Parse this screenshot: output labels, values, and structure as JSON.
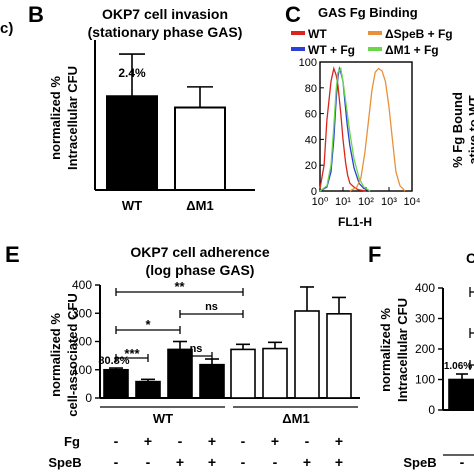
{
  "panels": {
    "partial_left": "c)",
    "B": "B",
    "C": "C",
    "E": "E",
    "F": "F"
  },
  "chart_data": [
    {
      "id": "B",
      "type": "bar",
      "title": [
        "OKP7 cell invasion",
        "(stationary phase GAS)"
      ],
      "ylabel": [
        "normalized %",
        "Intracellular CFU"
      ],
      "categories": [
        "WT",
        "ΔM1"
      ],
      "values": [
        100,
        88
      ],
      "errors": [
        45,
        22
      ],
      "fills": [
        "#000000",
        "#ffffff"
      ],
      "annotation": "2.4%",
      "ylim": [
        0,
        160
      ]
    },
    {
      "id": "C",
      "type": "line",
      "title": "GAS Fg Binding",
      "xlabel": "FL1-H",
      "xscale": "log",
      "xlim": [
        1,
        10000
      ],
      "xticks": [
        "10⁰",
        "10¹",
        "10²",
        "10³",
        "10⁴"
      ],
      "ylim": [
        0,
        100
      ],
      "yticks": [
        "0",
        "20",
        "40",
        "60",
        "80",
        "100"
      ],
      "legend": [
        {
          "name": "WT",
          "color": "#d9261c"
        },
        {
          "name": "WT + Fg",
          "color": "#2a3fd6"
        },
        {
          "name": "ΔSpeB + Fg",
          "color": "#e8913a"
        },
        {
          "name": "ΔM1 + Fg",
          "color": "#6cd64a"
        }
      ],
      "series": [
        {
          "name": "WT",
          "color": "#d9261c",
          "x": [
            1,
            1.5,
            2,
            3,
            4,
            5,
            6,
            8,
            10,
            13,
            16,
            20,
            30,
            45,
            70,
            100
          ],
          "y": [
            2,
            20,
            55,
            85,
            95,
            90,
            82,
            60,
            40,
            22,
            12,
            6,
            3,
            1,
            0.5,
            0
          ]
        },
        {
          "name": "WT + Fg",
          "color": "#2a3fd6",
          "x": [
            1,
            2,
            3,
            4,
            5,
            6,
            7,
            8,
            10,
            12,
            15,
            20,
            30,
            50,
            80,
            150
          ],
          "y": [
            0,
            3,
            15,
            40,
            70,
            88,
            95,
            92,
            85,
            70,
            52,
            35,
            18,
            6,
            2,
            0
          ]
        },
        {
          "name": "ΔM1 + Fg",
          "color": "#6cd64a",
          "x": [
            1,
            2,
            3,
            4,
            5,
            6,
            8,
            10,
            13,
            20,
            30,
            50,
            80,
            150
          ],
          "y": [
            0,
            4,
            20,
            50,
            78,
            92,
            95,
            85,
            70,
            45,
            25,
            10,
            3,
            0
          ]
        },
        {
          "name": "ΔSpeB + Fg",
          "color": "#e8913a",
          "x": [
            20,
            40,
            60,
            90,
            130,
            180,
            250,
            350,
            500,
            700,
            1000,
            1400,
            2000,
            3000,
            5000
          ],
          "y": [
            0,
            3,
            10,
            30,
            55,
            78,
            92,
            95,
            93,
            85,
            65,
            40,
            15,
            4,
            0
          ]
        }
      ],
      "clipped_ylabel": [
        "% Fg Bound",
        "ative to WT"
      ]
    },
    {
      "id": "E",
      "type": "bar",
      "title": [
        "OKP7 cell adherence",
        "(log phase GAS)"
      ],
      "ylabel": [
        "normalized %",
        "cell-associated CFU"
      ],
      "ylim": [
        0,
        400
      ],
      "yticks": [
        "0",
        "100",
        "200",
        "300",
        "400"
      ],
      "groups": [
        "WT",
        "ΔM1"
      ],
      "values": [
        100,
        58,
        172,
        118,
        172,
        175,
        308,
        298
      ],
      "errors": [
        6,
        8,
        28,
        20,
        18,
        22,
        85,
        58
      ],
      "fills": [
        "#000000",
        "#000000",
        "#000000",
        "#000000",
        "#ffffff",
        "#ffffff",
        "#ffffff",
        "#ffffff"
      ],
      "annotation": "80.8%",
      "significance": [
        {
          "label": "***",
          "from": 0,
          "to": 1
        },
        {
          "label": "ns",
          "from": 2,
          "to": 3
        },
        {
          "label": "*",
          "from": 0,
          "to": 2
        },
        {
          "label": "ns",
          "from": 2,
          "to": 4
        },
        {
          "label": "**",
          "from": 0,
          "to": 4
        }
      ],
      "row_labels": [
        "Fg",
        "SpeB"
      ],
      "fg_signs": [
        "-",
        "+",
        "-",
        "+",
        "-",
        "+",
        "-",
        "+"
      ],
      "speb_signs": [
        "-",
        "-",
        "+",
        "+",
        "-",
        "-",
        "+",
        "+"
      ]
    },
    {
      "id": "F",
      "type": "bar",
      "title": "C",
      "ylabel": [
        "normalized %",
        "Intracellular CFU"
      ],
      "ylim": [
        0,
        400
      ],
      "yticks": [
        "0",
        "100",
        "200",
        "300",
        "400"
      ],
      "values": [
        100
      ],
      "errors": [
        18
      ],
      "fills": [
        "#000000"
      ],
      "annotation": "1.06%",
      "row_labels": [
        "SpeB"
      ],
      "speb_signs": [
        "-"
      ]
    }
  ]
}
